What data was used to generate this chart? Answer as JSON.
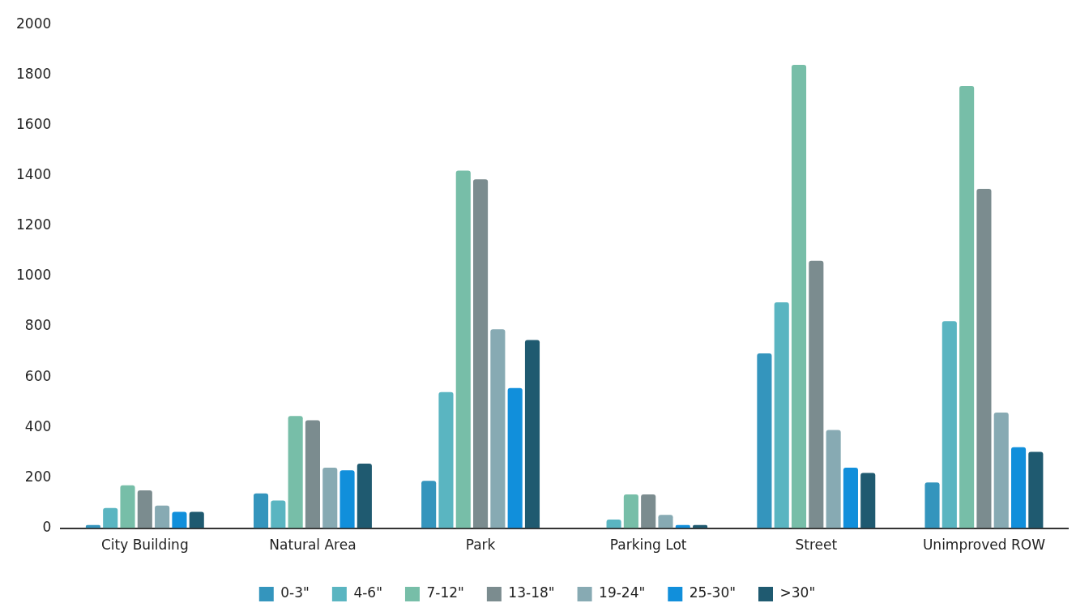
{
  "chart_data": {
    "type": "bar",
    "categories": [
      "City Building",
      "Natural Area",
      "Park",
      "Parking Lot",
      "Street",
      "Unimproved ROW"
    ],
    "series": [
      {
        "name": "0-3\"",
        "color": "#3495bd",
        "values": [
          12,
          138,
          188,
          0,
          694,
          181
        ]
      },
      {
        "name": "4-6\"",
        "color": "#5ab5c1",
        "values": [
          80,
          110,
          540,
          34,
          897,
          822
        ]
      },
      {
        "name": "7-12\"",
        "color": "#77bea8",
        "values": [
          170,
          445,
          1420,
          134,
          1840,
          1756
        ]
      },
      {
        "name": "13-18\"",
        "color": "#7b8c8f",
        "values": [
          150,
          428,
          1385,
          134,
          1062,
          1347
        ]
      },
      {
        "name": "19-24\"",
        "color": "#87aab3",
        "values": [
          90,
          240,
          790,
          53,
          390,
          459
        ]
      },
      {
        "name": "25-30\"",
        "color": "#118fdb",
        "values": [
          65,
          230,
          556,
          12,
          240,
          321
        ]
      },
      {
        "name": ">30\"",
        "color": "#1f5a70",
        "values": [
          65,
          256,
          747,
          12,
          219,
          303
        ]
      }
    ],
    "ylim": [
      0,
      2000
    ],
    "yticks": [
      0,
      200,
      400,
      600,
      800,
      1000,
      1200,
      1400,
      1600,
      1800,
      2000
    ],
    "grid": false,
    "legend": "bottom"
  }
}
